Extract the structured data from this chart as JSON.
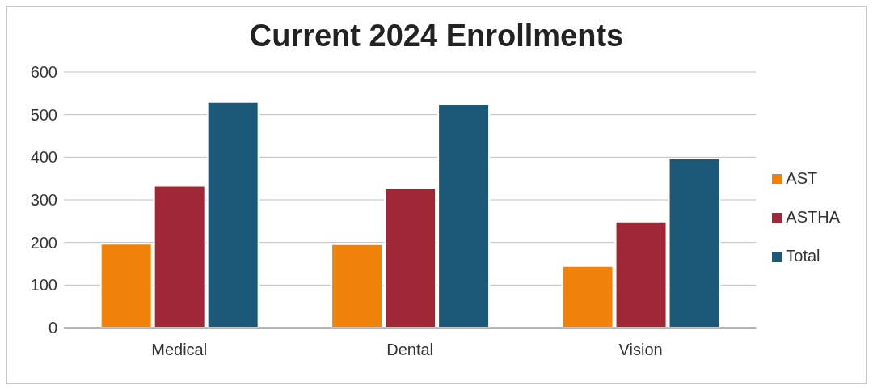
{
  "chart_data": {
    "type": "bar",
    "title": "Current 2024 Enrollments",
    "categories": [
      "Medical",
      "Dental",
      "Vision"
    ],
    "series": [
      {
        "name": "AST",
        "color": "#f0820a",
        "values": [
          197,
          196,
          145
        ]
      },
      {
        "name": "ASTHA",
        "color": "#a02836",
        "values": [
          333,
          328,
          249
        ]
      },
      {
        "name": "Total",
        "color": "#1c5878",
        "values": [
          530,
          524,
          397
        ]
      }
    ],
    "ylim": [
      0,
      600
    ],
    "yticks": [
      0,
      100,
      200,
      300,
      400,
      500,
      600
    ],
    "grid": "y",
    "legend": "right"
  }
}
